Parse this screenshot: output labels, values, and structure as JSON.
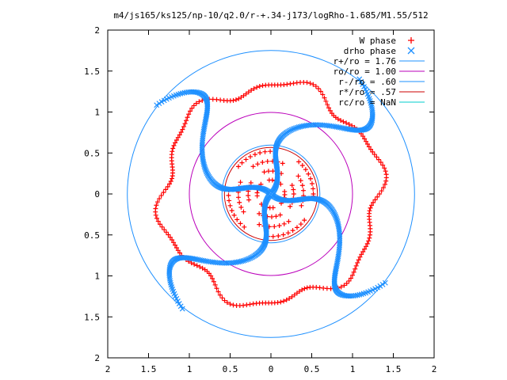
{
  "chart_data": {
    "type": "scatter",
    "title": "m4/js165/ks125/np-10/q2.0/r-+.34-j173/logRho-1.685/M1.55/512",
    "xlim": [
      -2,
      2
    ],
    "ylim": [
      -2,
      2
    ],
    "grid": false,
    "legend_placement": "top-right",
    "x_ticks": [
      {
        "value": -2,
        "label": "2"
      },
      {
        "value": -1.5,
        "label": "1.5"
      },
      {
        "value": -1,
        "label": "1"
      },
      {
        "value": -0.5,
        "label": "0.5"
      },
      {
        "value": 0,
        "label": "0"
      },
      {
        "value": 0.5,
        "label": "0.5"
      },
      {
        "value": 1,
        "label": "1"
      },
      {
        "value": 1.5,
        "label": "1.5"
      },
      {
        "value": 2,
        "label": "2"
      }
    ],
    "y_ticks": [
      {
        "value": 2,
        "label": "2"
      },
      {
        "value": 1.5,
        "label": "1.5"
      },
      {
        "value": 1,
        "label": "1"
      },
      {
        "value": 0.5,
        "label": "0.5"
      },
      {
        "value": 0,
        "label": "0"
      },
      {
        "value": -0.5,
        "label": "0.5"
      },
      {
        "value": -1,
        "label": "1"
      },
      {
        "value": -1.5,
        "label": "1.5"
      },
      {
        "value": -2,
        "label": "2"
      }
    ],
    "series": [
      {
        "name": "W phase",
        "kind": "points",
        "marker": "+",
        "color": "#ff0000",
        "spiral": {
          "r_min": 1.0,
          "r_max": 1.76,
          "arms": 4,
          "r_outer": 1.33,
          "r_amp": 0.08,
          "r_freq": 6,
          "phase_deg": 0
        }
      },
      {
        "name": "drho phase",
        "kind": "points",
        "marker": "x",
        "color": "#1e90ff",
        "spiral": {
          "r_min": 0.0,
          "r_max": 1.85,
          "arms": 4,
          "phase_deg": 35
        }
      },
      {
        "name": "r+/ro = 1.76",
        "kind": "circle",
        "radius": 1.76,
        "color": "#1e90ff"
      },
      {
        "name": "ro/ro = 1.00",
        "kind": "circle",
        "radius": 1.0,
        "color": "#bb00bb"
      },
      {
        "name": "r-/ro = .60",
        "kind": "circle",
        "radius": 0.6,
        "color": "#1e90ff"
      },
      {
        "name": "r*/ro = .57",
        "kind": "circle",
        "radius": 0.57,
        "color": "#cc0000"
      },
      {
        "name": "rc/ro = NaN",
        "kind": "circle",
        "radius": null,
        "color": "#00cccc"
      }
    ]
  }
}
